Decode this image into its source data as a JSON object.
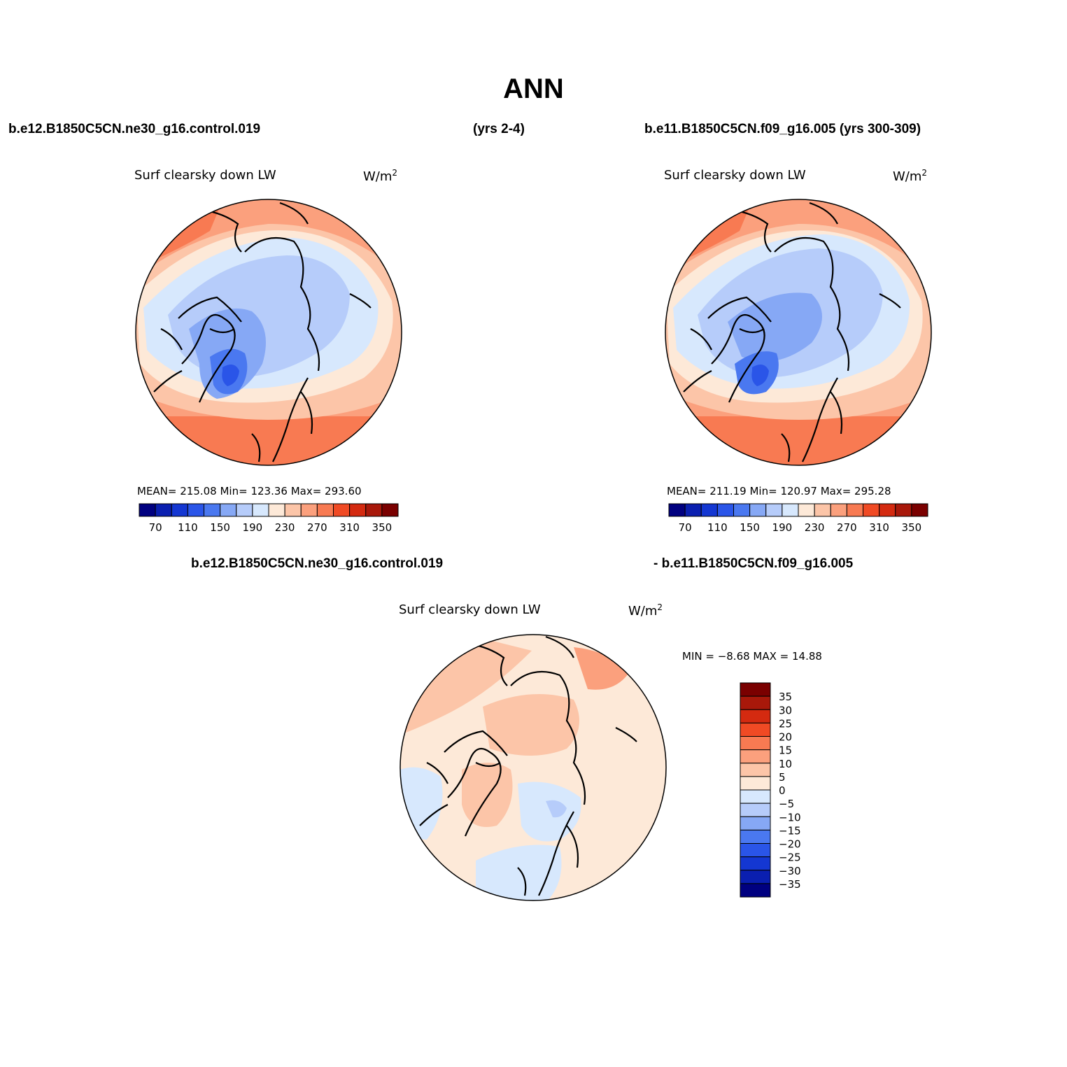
{
  "title": "ANN",
  "header": {
    "case1": "b.e12.B1850C5CN.ne30_g16.control.019",
    "case1_years": "(yrs 2-4)",
    "case2": "b.e11.B1850C5CN.f09_g16.005 (yrs 300-309)",
    "diff_case1": "b.e12.B1850C5CN.ne30_g16.control.019",
    "diff_case2": "- b.e11.B1850C5CN.f09_g16.005"
  },
  "panels": [
    {
      "variable": "Surf clearsky down LW",
      "units": "W/m",
      "units_sup": "2",
      "stats": "MEAN= 215.08   Min= 123.36   Max= 293.60"
    },
    {
      "variable": "Surf clearsky down LW",
      "units": "W/m",
      "units_sup": "2",
      "stats": "MEAN= 211.19   Min= 120.97   Max= 295.28"
    },
    {
      "variable": "Surf clearsky down LW",
      "units": "W/m",
      "units_sup": "2",
      "stats": "MIN =   −8.68 MAX =   14.88"
    }
  ],
  "colorbar_abs": {
    "labels": [
      "70",
      "110",
      "150",
      "190",
      "230",
      "270",
      "310",
      "350"
    ],
    "colors": [
      "#000080",
      "#0a1fb0",
      "#1437d2",
      "#2a55e8",
      "#4a78f0",
      "#86a8f5",
      "#b6ccfa",
      "#d7e8fd",
      "#fde9d8",
      "#fcc5a8",
      "#fba07d",
      "#f87a52",
      "#f04a24",
      "#d42a10",
      "#a8180a",
      "#7a0000"
    ]
  },
  "colorbar_diff": {
    "labels": [
      "35",
      "30",
      "25",
      "20",
      "15",
      "10",
      "5",
      "0",
      "−5",
      "−10",
      "−15",
      "−20",
      "−25",
      "−30",
      "−35"
    ],
    "colors": [
      "#7a0000",
      "#a8180a",
      "#d42a10",
      "#f04a24",
      "#f87a52",
      "#fba07d",
      "#fcc5a8",
      "#fde9d8",
      "#d7e8fd",
      "#b6ccfa",
      "#86a8f5",
      "#4a78f0",
      "#2a55e8",
      "#1437d2",
      "#0a1fb0",
      "#000080"
    ]
  }
}
